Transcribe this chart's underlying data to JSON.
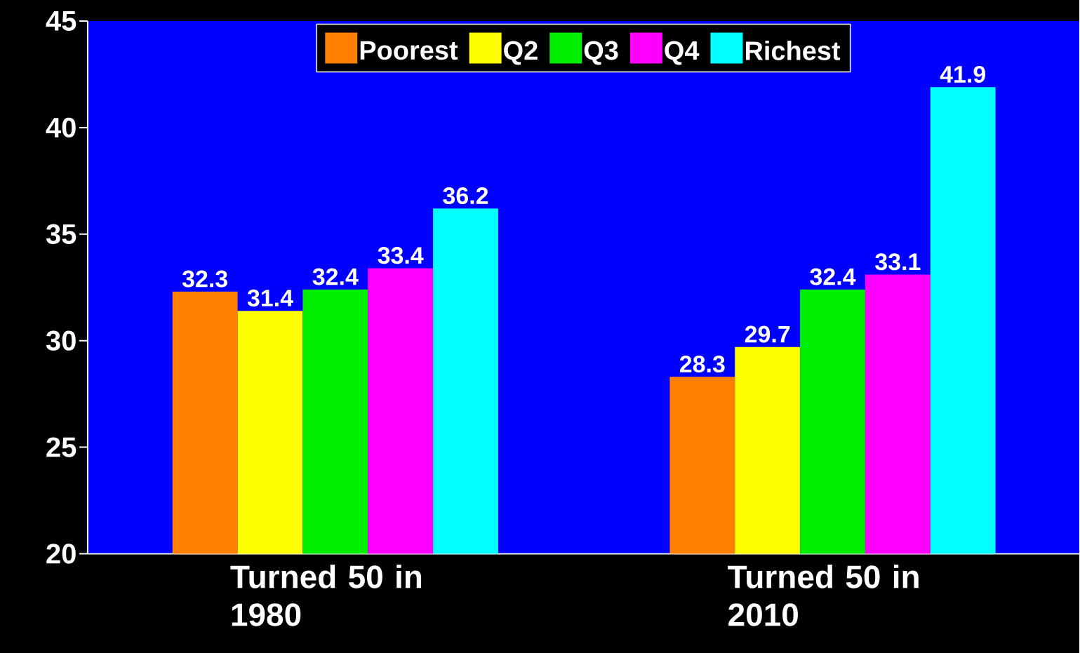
{
  "chart_data": {
    "type": "bar",
    "categories": [
      "Turned 50 in 1980",
      "Turned 50 in 2010"
    ],
    "series": [
      {
        "name": "Poorest",
        "color": "#ff7f00",
        "values": [
          32.3,
          28.3
        ]
      },
      {
        "name": "Q2",
        "color": "#ffff00",
        "values": [
          31.4,
          29.7
        ]
      },
      {
        "name": "Q3",
        "color": "#00ee00",
        "values": [
          32.4,
          32.4
        ]
      },
      {
        "name": "Q4",
        "color": "#ff00ff",
        "values": [
          33.4,
          33.1
        ]
      },
      {
        "name": "Richest",
        "color": "#00ffff",
        "values": [
          36.2,
          41.9
        ]
      }
    ],
    "ylim": [
      20,
      45
    ],
    "yticks": [
      20,
      25,
      30,
      35,
      40,
      45
    ],
    "data_labels": true,
    "legend": "top",
    "grid": false
  }
}
